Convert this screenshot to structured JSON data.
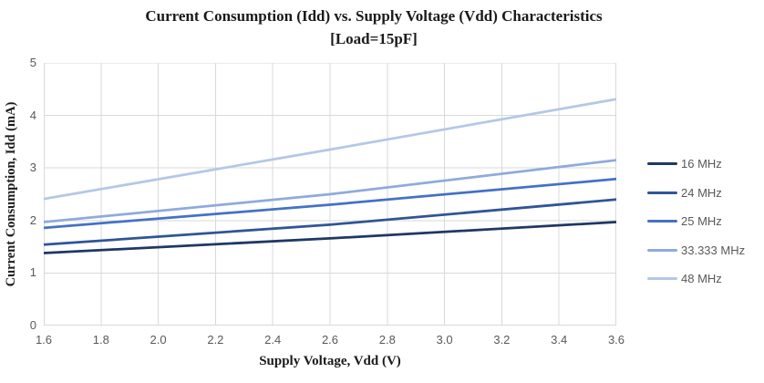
{
  "chart_data": {
    "type": "line",
    "title": "Current Consumption (Idd) vs. Supply Voltage (Vdd) Characteristics",
    "subtitle": "[Load=15pF]",
    "xlabel": "Supply Voltage, Vdd (V)",
    "ylabel": "Current Consumption, Idd (mA)",
    "xlim": [
      1.6,
      3.6
    ],
    "ylim": [
      0,
      5
    ],
    "xticks": [
      1.6,
      1.8,
      2.0,
      2.2,
      2.4,
      2.6,
      2.8,
      3.0,
      3.2,
      3.4,
      3.6
    ],
    "xtick_labels": [
      "1.6",
      "1.8",
      "2.0",
      "2.2",
      "2.4",
      "2.6",
      "2.8",
      "3.0",
      "3.2",
      "3.4",
      "3.6"
    ],
    "yticks": [
      0,
      1,
      2,
      3,
      4,
      5
    ],
    "ytick_labels": [
      "0",
      "1",
      "2",
      "3",
      "4",
      "5"
    ],
    "grid": true,
    "gridline_color": "#D9D9D9",
    "legend_position": "right",
    "x": [
      1.6,
      2.6,
      3.6
    ],
    "series": [
      {
        "name": "16 MHz",
        "color": "#1F3864",
        "values": [
          1.38,
          1.66,
          1.97
        ]
      },
      {
        "name": "24 MHz",
        "color": "#2F5597",
        "values": [
          1.54,
          1.92,
          2.4
        ]
      },
      {
        "name": "25 MHz",
        "color": "#4472C4",
        "values": [
          1.86,
          2.3,
          2.79
        ]
      },
      {
        "name": "33.333 MHz",
        "color": "#8FAADC",
        "values": [
          1.97,
          2.5,
          3.15
        ]
      },
      {
        "name": "48 MHz",
        "color": "#B4C7E7",
        "values": [
          2.41,
          3.35,
          4.31
        ]
      }
    ]
  },
  "text_colors": {
    "title": "#1a1a1a",
    "ticks": "#595959",
    "legend": "#595959"
  }
}
